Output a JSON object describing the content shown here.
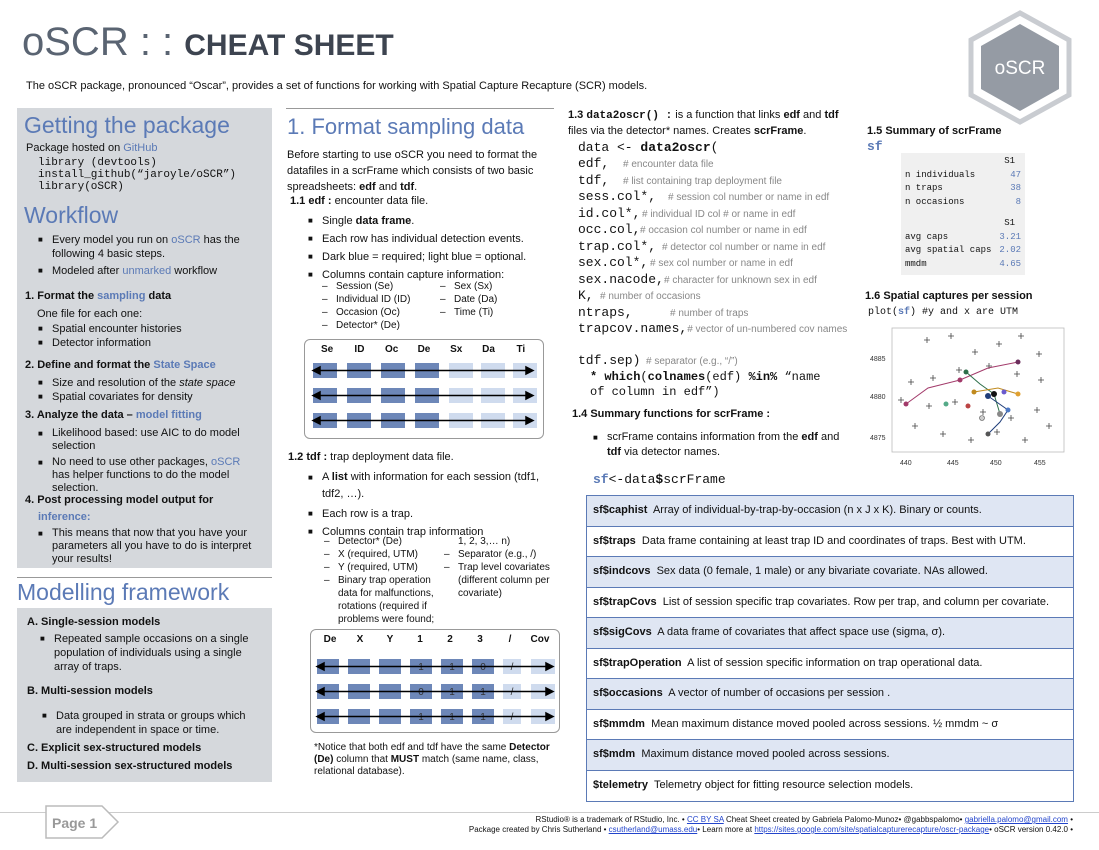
{
  "header": {
    "title_left": "oSCR : : ",
    "title_right": "CHEAT SHEET",
    "intro": "The oSCR package, pronounced “Oscar”, provides a set of functions for working with Spatial Capture Recapture (SCR) models.",
    "logo_text": "oSCR"
  },
  "getting": {
    "heading": "Getting the package",
    "hosted_prefix": "Package hosted on ",
    "hosted_link": "GitHub",
    "code": [
      "library (devtools)",
      "install_github(“jaroyle/oSCR”)",
      "library(oSCR)"
    ]
  },
  "workflow": {
    "heading": "Workflow",
    "b1_prefix": "Every model you run on ",
    "b1_link": "oSCR",
    "b1_suffix": " has the following 4 basic steps.",
    "b2_prefix": "Modeled after ",
    "b2_link": "unmarked",
    "b2_suffix": " workflow",
    "s1_prefix": "1. Format the ",
    "s1_link": "sampling",
    "s1_suffix": " data",
    "s1_note": "One file for each one:",
    "s1_items": [
      "Spatial encounter histories",
      "Detector information"
    ],
    "s2_prefix": "2. Define and format the ",
    "s2_link": "State Space",
    "s2_item1": "Size and resolution of the ",
    "s2_item1_it": "state space",
    "s2_item2": "Spatial covariates for density",
    "s3_prefix": "3. Analyze the data – ",
    "s3_link": "model fitting",
    "s3_item1": "Likelihood based: use AIC to do model selection",
    "s3_item2_prefix": "No need to use other packages, ",
    "s3_item2_link": "oSCR",
    "s3_item2_suffix": " has helper functions to do the model selection.",
    "s4_title": "4. Post processing model output for",
    "s4_link": "inference:",
    "s4_item": "This means that now that you have your parameters all you have to do is interpret your results!"
  },
  "modelling": {
    "heading": "Modelling framework",
    "a": "A. Single-session models",
    "a_item": "Repeated sample occasions on a single population of individuals using a single array of traps.",
    "b": "B. Multi-session models",
    "b_item": "Data grouped in strata or groups which are independent in space or time.",
    "c": "C. Explicit sex-structured models",
    "d": "D. Multi-session sex-structured models"
  },
  "format": {
    "heading": "1. Format sampling data",
    "intro_a": "Before starting to use oSCR you need to format the datafiles in a scrFrame which consists of two basic spreadsheets: ",
    "intro_edf": "edf",
    "intro_and": " and ",
    "intro_tdf": "tdf",
    "intro_end": ".",
    "edf_title": "1.1 edf : ",
    "edf_desc": "encounter data file.",
    "edf_b1_a": "Single ",
    "edf_b1_b": "data frame",
    "edf_b1_c": ".",
    "edf_b2": "Each row has individual detection events.",
    "edf_b3": "Dark blue = required; light blue = optional.",
    "edf_b4": "Columns contain capture information:",
    "edf_cols_left": [
      "Session (Se)",
      "Individual ID (ID)",
      "Occasion (Oc)",
      "Detector* (De)"
    ],
    "edf_cols_right": [
      "Sex (Sx)",
      "Date (Da)",
      "Time (Ti)"
    ],
    "edf_table_head": [
      "Se",
      "ID",
      "Oc",
      "De",
      "Sx",
      "Da",
      "Ti"
    ],
    "tdf_title": "1.2  tdf : ",
    "tdf_desc": " trap deployment data file.",
    "tdf_b1_a": "A ",
    "tdf_b1_b": "list",
    "tdf_b1_c": " with information for each session (tdf1, tdf2, …).",
    "tdf_b2": "Each row is a trap.",
    "tdf_b3": "Columns contain trap information",
    "tdf_cols_left": [
      "Detector* (De)",
      "X (required, UTM)",
      "Y (required, UTM)",
      "Binary trap operation data for malfunctions, rotations (required if problems were found;"
    ],
    "tdf_cols_right_plain": "1, 2, 3,… n)",
    "tdf_cols_right": [
      "Separator (e.g., /)",
      "Trap level covariates (different column per covariate)"
    ],
    "tdf_table_head": [
      "De",
      "X",
      "Y",
      "1",
      "2",
      "3",
      "/",
      "Cov"
    ],
    "tdf_row_vals": [
      [
        "1",
        "1",
        "0",
        "/"
      ],
      [
        "0",
        "1",
        "1",
        "/"
      ],
      [
        "1",
        "1",
        "1",
        "/"
      ]
    ],
    "notice_a": "*Notice that both edf and tdf have the same ",
    "notice_b": "Detector (De)",
    "notice_c": " column that ",
    "notice_d": "MUST",
    "notice_e": " match (same name, class, relational database)."
  },
  "data2oscr": {
    "title_num": "1.3 ",
    "title_fn": "data2oscr() :",
    "desc_a": " is a function that links ",
    "desc_edf": "edf",
    "desc_and": " and ",
    "desc_tdf": "tdf",
    "desc_b": " files via the detector* names. Creates ",
    "desc_scr": "scrFrame",
    "desc_end": ".",
    "code_line0": "data <- ",
    "code_fn": "data2oscr",
    "code_paren": "(",
    "args": [
      {
        "code": "edf,",
        "comment": "# encounter data file"
      },
      {
        "code": "tdf,",
        "comment": "# list containing trap deployment file"
      },
      {
        "code": "sess.col*,",
        "comment": "# session col number or name in edf"
      },
      {
        "code": "id.col*,",
        "comment": "# individual ID col # or name in edf"
      },
      {
        "code": "occ.col,",
        "comment": "# occasion col number or name in edf"
      },
      {
        "code": "trap.col*,",
        "comment": "# detector col number or name in edf"
      },
      {
        "code": "sex.col*,",
        "comment": "# sex col number or name in edf"
      },
      {
        "code": "sex.nacode,",
        "comment": "# character for unknown sex in edf"
      },
      {
        "code": "K,",
        "comment": "# number of occasions"
      },
      {
        "code": "ntraps,",
        "comment": "# number of traps"
      },
      {
        "code": "trapcov.names,",
        "comment": "# vector of un-numbered cov names"
      },
      {
        "code": "tdf.sep)",
        "comment": "# separator (e.g., “/”)"
      }
    ],
    "note_star": "* ",
    "note_fn1": "which",
    "note_fn2": "colnames",
    "note_mid": "(edf) ",
    "note_op": "%in%",
    "note_str": " “name of column in edf”)"
  },
  "summary": {
    "title": "1.4 Summary functions for scrFrame :",
    "item_a": "scrFrame contains information from the ",
    "item_edf": "edf",
    "item_and": " and ",
    "item_tdf": "tdf",
    "item_b": " via detector names.",
    "assign_sf": "sf",
    "assign_mid": "<-data",
    "assign_dollar": "$",
    "assign_end": "scrFrame"
  },
  "summary_scr": {
    "title": "1.5 Summary of scrFrame",
    "sf": "sf",
    "head1": "S1",
    "rows1": [
      [
        "n individuals",
        "47"
      ],
      [
        "n traps",
        "38"
      ],
      [
        "n occasions",
        "8"
      ]
    ],
    "head2": "S1",
    "rows2": [
      [
        "avg caps",
        "3.21"
      ],
      [
        "avg spatial caps",
        "2.02"
      ],
      [
        "mmdm",
        "4.65"
      ]
    ]
  },
  "spatial": {
    "title": "1.6 Spatial captures per session",
    "code_a": "plot(",
    "code_sf": "sf",
    "code_b": ") #y and x are UTM",
    "yticks": [
      "4885",
      "4880",
      "4875"
    ],
    "xticks": [
      "440",
      "445",
      "450",
      "455"
    ]
  },
  "sf_table": [
    {
      "key": "sf$caphist",
      "desc": "Array of individual-by-trap-by-occasion (n x J x K). Binary or counts."
    },
    {
      "key": "sf$traps",
      "desc": "Data frame containing at least trap ID and coordinates of traps. Best with UTM."
    },
    {
      "key": "sf$indcovs",
      "desc": "Sex data (0 female, 1 male) or any bivariate covariate. NAs allowed."
    },
    {
      "key": "sf$trapCovs",
      "desc": "List of session specific trap covariates. Row per trap, and column per covariate."
    },
    {
      "key": "sf$sigCovs",
      "desc": "A data frame of covariates that affect space use (sigma, σ)."
    },
    {
      "key": "sf$trapOperation",
      "desc": "A list of session specific information on trap operational data."
    },
    {
      "key": "sf$occasions",
      "desc": "A vector of number of occasions per session ."
    },
    {
      "key": "sf$mmdm",
      "desc": "Mean maximum distance moved pooled across sessions. ½ mmdm ~ σ"
    },
    {
      "key": "sf$mdm",
      "desc": "Maximum distance moved pooled across sessions."
    },
    {
      "key": "$telemetry",
      "desc": "Telemetry object for fitting resource selection models."
    }
  ],
  "footer": {
    "page": "Page 1",
    "l1_a": "RStudio® is a trademark of RStudio, Inc.  •  ",
    "l1_link1": "CC BY SA",
    "l1_b": " Cheat Sheet created by Gabriela Palomo-Munoz• @gabbspalomo• ",
    "l1_link2": "gabriella.palomo@gmail.com",
    "l1_c": " •",
    "l2_a": "Package created by Chris Sutherland • ",
    "l2_link1": "csutherland@umass.edu",
    "l2_b": "• Learn more at ",
    "l2_link2": "https://sites.google.com/site/spatialcapturerecapture/oscr-package",
    "l2_c": "• oSCR version 0.42.0 •"
  },
  "colors": {
    "accent": "#5b7ab6",
    "panel": "#d5d8dc",
    "dark_cell": "#6d87b8",
    "light_cell": "#cfdbee"
  }
}
